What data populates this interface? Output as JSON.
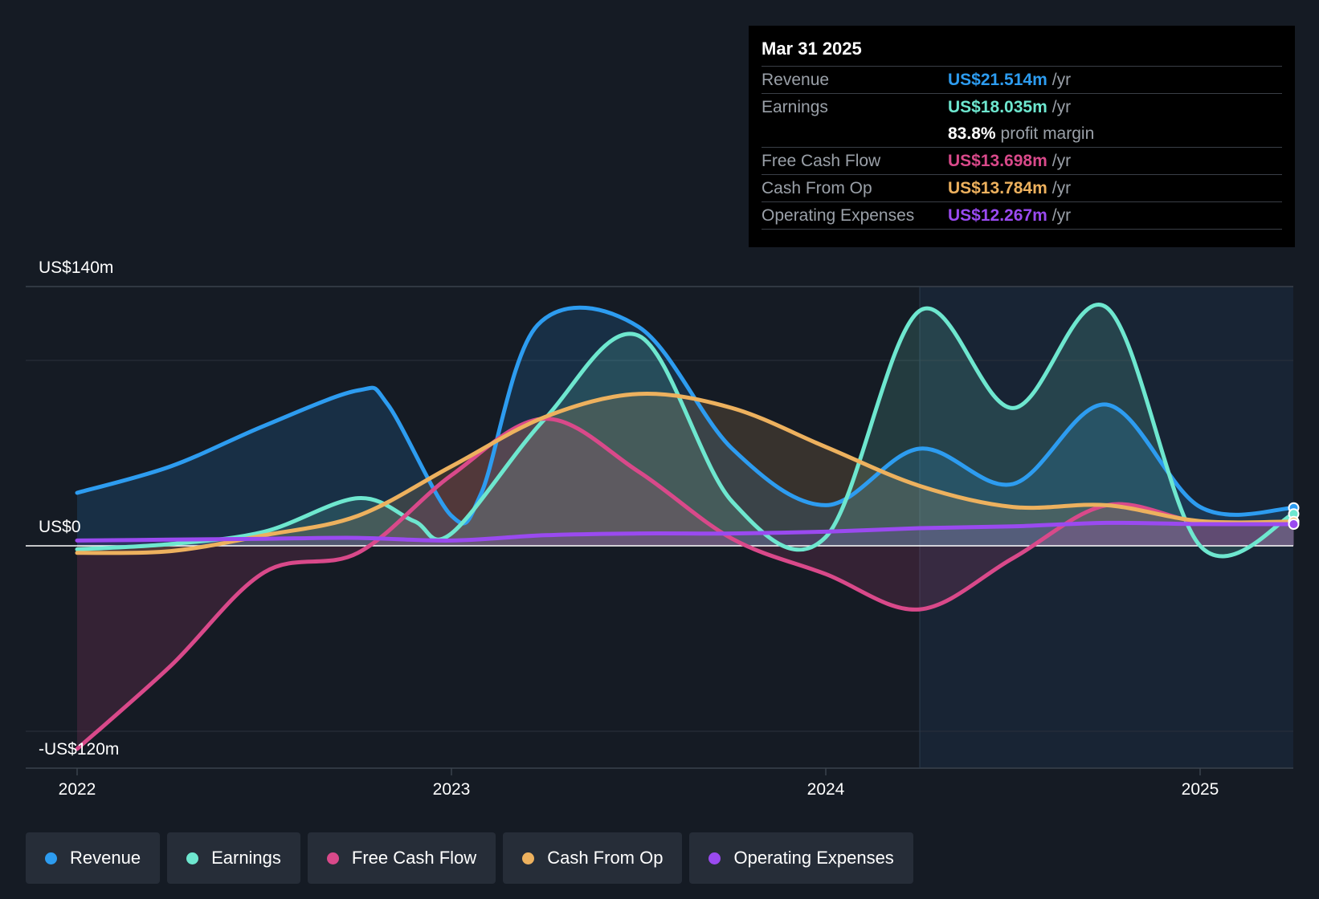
{
  "chart_data": {
    "type": "area",
    "ylim": [
      -120,
      140
    ],
    "y_tick_labels": [
      "US$140m",
      "US$0",
      "-US$120m"
    ],
    "x_tick_labels": [
      "2022",
      "2023",
      "2024",
      "2025"
    ],
    "grid": true,
    "series": [
      {
        "name": "Revenue",
        "color": "#2d9cf0",
        "points": [
          [
            2022.0,
            30
          ],
          [
            2022.25,
            45
          ],
          [
            2022.5,
            68
          ],
          [
            2022.75,
            88
          ],
          [
            2022.83,
            80
          ],
          [
            2023.0,
            17
          ],
          [
            2023.08,
            30
          ],
          [
            2023.23,
            125
          ],
          [
            2023.5,
            124
          ],
          [
            2023.75,
            55
          ],
          [
            2024.0,
            23
          ],
          [
            2024.25,
            55
          ],
          [
            2024.5,
            35
          ],
          [
            2024.75,
            80
          ],
          [
            2025.0,
            22
          ],
          [
            2025.25,
            21.514
          ]
        ]
      },
      {
        "name": "Earnings",
        "color": "#6ee7cf",
        "points": [
          [
            2022.0,
            -2
          ],
          [
            2022.25,
            1
          ],
          [
            2022.5,
            8
          ],
          [
            2022.75,
            27
          ],
          [
            2022.9,
            14
          ],
          [
            2023.0,
            7
          ],
          [
            2023.25,
            72
          ],
          [
            2023.5,
            119
          ],
          [
            2023.75,
            25
          ],
          [
            2024.0,
            5
          ],
          [
            2024.25,
            133
          ],
          [
            2024.5,
            78
          ],
          [
            2024.75,
            135
          ],
          [
            2025.0,
            0
          ],
          [
            2025.25,
            18.035
          ]
        ]
      },
      {
        "name": "Free Cash Flow",
        "color": "#d9498a",
        "points": [
          [
            2022.0,
            -115
          ],
          [
            2022.25,
            -68
          ],
          [
            2022.5,
            -15
          ],
          [
            2022.75,
            -4
          ],
          [
            2023.0,
            40
          ],
          [
            2023.25,
            72
          ],
          [
            2023.5,
            42
          ],
          [
            2023.75,
            4
          ],
          [
            2024.0,
            -16
          ],
          [
            2024.25,
            -36
          ],
          [
            2024.5,
            -7
          ],
          [
            2024.75,
            23
          ],
          [
            2025.0,
            13.5
          ],
          [
            2025.25,
            13.698
          ]
        ]
      },
      {
        "name": "Cash From Op",
        "color": "#edb15e",
        "points": [
          [
            2022.0,
            -4
          ],
          [
            2022.25,
            -3
          ],
          [
            2022.5,
            6
          ],
          [
            2022.75,
            17
          ],
          [
            2023.0,
            45
          ],
          [
            2023.25,
            73
          ],
          [
            2023.5,
            86
          ],
          [
            2023.75,
            78
          ],
          [
            2024.0,
            56
          ],
          [
            2024.25,
            34
          ],
          [
            2024.5,
            22
          ],
          [
            2024.75,
            23
          ],
          [
            2025.0,
            14
          ],
          [
            2025.25,
            13.784
          ]
        ]
      },
      {
        "name": "Operating Expenses",
        "color": "#9a4af0",
        "points": [
          [
            2022.0,
            3
          ],
          [
            2022.25,
            3.5
          ],
          [
            2022.5,
            4
          ],
          [
            2022.75,
            4.5
          ],
          [
            2023.0,
            3
          ],
          [
            2023.25,
            6
          ],
          [
            2023.5,
            7
          ],
          [
            2023.75,
            7
          ],
          [
            2024.0,
            8
          ],
          [
            2024.25,
            10
          ],
          [
            2024.5,
            11
          ],
          [
            2024.75,
            13
          ],
          [
            2025.0,
            12.3
          ],
          [
            2025.25,
            12.267
          ]
        ]
      }
    ]
  },
  "tooltip": {
    "date": "Mar 31 2025",
    "rows": [
      {
        "label": "Revenue",
        "value": "US$21.514m",
        "unit": "/yr",
        "color": "#2d9cf0"
      },
      {
        "label": "Earnings",
        "value": "US$18.035m",
        "unit": "/yr",
        "color": "#6ee7cf"
      },
      {
        "label": "",
        "value": "83.8%",
        "unit": "profit margin",
        "color": "#ffffff"
      },
      {
        "label": "Free Cash Flow",
        "value": "US$13.698m",
        "unit": "/yr",
        "color": "#d9498a"
      },
      {
        "label": "Cash From Op",
        "value": "US$13.784m",
        "unit": "/yr",
        "color": "#edb15e"
      },
      {
        "label": "Operating Expenses",
        "value": "US$12.267m",
        "unit": "/yr",
        "color": "#9a4af0"
      }
    ]
  },
  "legend": [
    {
      "label": "Revenue",
      "color": "#2d9cf0"
    },
    {
      "label": "Earnings",
      "color": "#6ee7cf"
    },
    {
      "label": "Free Cash Flow",
      "color": "#d9498a"
    },
    {
      "label": "Cash From Op",
      "color": "#edb15e"
    },
    {
      "label": "Operating Expenses",
      "color": "#9a4af0"
    }
  ]
}
